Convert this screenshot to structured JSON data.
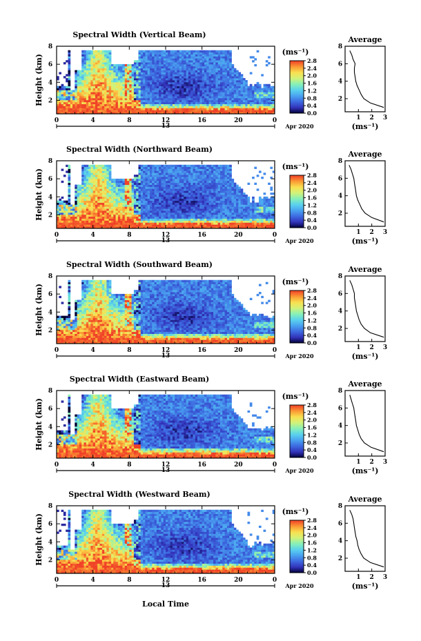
{
  "figure": {
    "height_label": "Height (km)",
    "date_label": "Apr 2020",
    "day_label": "13",
    "xlabel": "Local Time",
    "colorbar_unit": "(ms⁻¹)",
    "profile_title": "Average",
    "profile_xlabel": "(ms⁻¹)",
    "colorbar_ticks": [
      "0.0",
      "0.4",
      "0.8",
      "1.2",
      "1.6",
      "2.0",
      "2.4",
      "2.8"
    ],
    "colormap": [
      "#000033",
      "#3333bb",
      "#3d6ae0",
      "#4aa2f0",
      "#5ad2ee",
      "#86f0b8",
      "#d2f27a",
      "#f8e050",
      "#fb9a34",
      "#f04228"
    ],
    "x_ticks": [
      "0",
      "4",
      "8",
      "12",
      "16",
      "20",
      "0"
    ],
    "y_ticks": [
      "2",
      "4",
      "6",
      "8"
    ],
    "profile_x_ticks": [
      "1",
      "2",
      "3"
    ],
    "profile_y_ticks": [
      "2",
      "4",
      "6",
      "8"
    ]
  },
  "panels": [
    {
      "title": "Spectral Width (Vertical Beam)"
    },
    {
      "title": "Spectral Width (Northward Beam)"
    },
    {
      "title": "Spectral Width (Southward Beam)"
    },
    {
      "title": "Spectral Width (Eastward Beam)"
    },
    {
      "title": "Spectral Width (Westward Beam)"
    }
  ],
  "chart_data": [
    {
      "type": "heatmap",
      "title": "Spectral Width (Vertical Beam)",
      "xlabel": "",
      "ylabel": "Height (km)",
      "xlim": [
        0,
        24
      ],
      "ylim": [
        0.5,
        8
      ],
      "clim": [
        0,
        2.8
      ],
      "colorbar_label": "(ms⁻¹)",
      "profile": {
        "title": "Average",
        "xlabel": "(ms⁻¹)",
        "xlim": [
          0,
          3
        ],
        "ylim": [
          0.5,
          8
        ],
        "height": [
          1.0,
          1.5,
          2.0,
          2.5,
          3.0,
          3.5,
          4.0,
          4.5,
          5.0,
          5.5,
          6.0,
          6.5,
          7.0,
          7.5
        ],
        "width": [
          2.9,
          1.9,
          1.4,
          1.2,
          1.05,
          0.9,
          0.8,
          0.75,
          0.7,
          0.7,
          0.75,
          0.6,
          0.5,
          0.35
        ]
      }
    },
    {
      "type": "heatmap",
      "title": "Spectral Width (Northward Beam)",
      "xlabel": "",
      "ylabel": "Height (km)",
      "xlim": [
        0,
        24
      ],
      "ylim": [
        0.5,
        8
      ],
      "clim": [
        0,
        2.8
      ],
      "colorbar_label": "(ms⁻¹)",
      "profile": {
        "title": "Average",
        "xlabel": "(ms⁻¹)",
        "xlim": [
          0,
          3
        ],
        "ylim": [
          0.5,
          8
        ],
        "height": [
          1.0,
          1.5,
          2.0,
          2.5,
          3.0,
          3.5,
          4.0,
          4.5,
          5.0,
          5.5,
          6.0,
          6.5,
          7.0,
          7.5
        ],
        "width": [
          2.9,
          2.0,
          1.5,
          1.25,
          1.1,
          0.95,
          0.85,
          0.8,
          0.75,
          0.7,
          0.65,
          0.55,
          0.45,
          0.3
        ]
      }
    },
    {
      "type": "heatmap",
      "title": "Spectral Width (Southward Beam)",
      "xlabel": "",
      "ylabel": "Height (km)",
      "xlim": [
        0,
        24
      ],
      "ylim": [
        0.5,
        8
      ],
      "clim": [
        0,
        2.8
      ],
      "colorbar_label": "(ms⁻¹)",
      "profile": {
        "title": "Average",
        "xlabel": "(ms⁻¹)",
        "xlim": [
          0,
          3
        ],
        "ylim": [
          0.5,
          8
        ],
        "height": [
          1.0,
          1.5,
          2.0,
          2.5,
          3.0,
          3.5,
          4.0,
          4.5,
          5.0,
          5.5,
          6.0,
          6.5,
          7.0,
          7.5
        ],
        "width": [
          2.9,
          1.9,
          1.45,
          1.2,
          1.05,
          0.95,
          0.85,
          0.8,
          0.75,
          0.7,
          0.7,
          0.6,
          0.5,
          0.35
        ]
      }
    },
    {
      "type": "heatmap",
      "title": "Spectral Width (Eastward Beam)",
      "xlabel": "",
      "ylabel": "Height (km)",
      "xlim": [
        0,
        24
      ],
      "ylim": [
        0.5,
        8
      ],
      "clim": [
        0,
        2.8
      ],
      "colorbar_label": "(ms⁻¹)",
      "profile": {
        "title": "Average",
        "xlabel": "(ms⁻¹)",
        "xlim": [
          0,
          3
        ],
        "ylim": [
          0.5,
          8
        ],
        "height": [
          1.0,
          1.5,
          2.0,
          2.5,
          3.0,
          3.5,
          4.0,
          4.5,
          5.0,
          5.5,
          6.0,
          6.5,
          7.0,
          7.5
        ],
        "width": [
          2.9,
          1.95,
          1.45,
          1.2,
          1.05,
          0.95,
          0.85,
          0.8,
          0.75,
          0.7,
          0.65,
          0.55,
          0.45,
          0.35
        ]
      }
    },
    {
      "type": "heatmap",
      "title": "Spectral Width (Westward Beam)",
      "xlabel": "Local Time",
      "ylabel": "Height (km)",
      "xlim": [
        0,
        24
      ],
      "ylim": [
        0.5,
        8
      ],
      "clim": [
        0,
        2.8
      ],
      "colorbar_label": "(ms⁻¹)",
      "profile": {
        "title": "Average",
        "xlabel": "(ms⁻¹)",
        "xlim": [
          0,
          3
        ],
        "ylim": [
          0.5,
          8
        ],
        "height": [
          1.0,
          1.5,
          2.0,
          2.5,
          3.0,
          3.5,
          4.0,
          4.5,
          5.0,
          5.5,
          6.0,
          6.5,
          7.0,
          7.5
        ],
        "width": [
          2.9,
          1.9,
          1.4,
          1.2,
          1.05,
          0.95,
          0.9,
          0.8,
          0.75,
          0.7,
          0.65,
          0.6,
          0.5,
          0.35
        ]
      }
    }
  ]
}
